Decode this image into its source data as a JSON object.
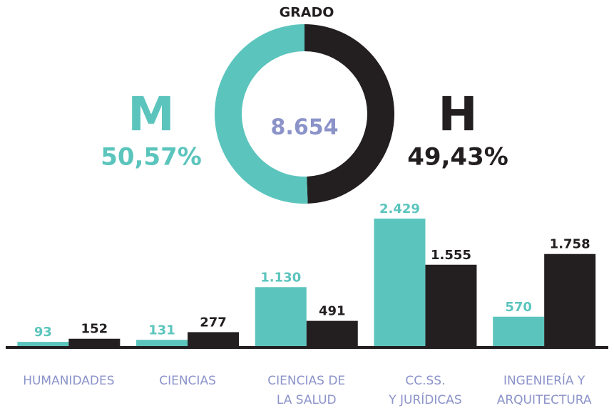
{
  "chart_data": [
    {
      "type": "pie",
      "title": "GRADO",
      "center_label": "8.654",
      "categories": [
        "M",
        "H"
      ],
      "values": [
        50.57,
        49.43
      ],
      "value_labels": [
        "50,57%",
        "49,43%"
      ],
      "colors": [
        "#5bc5bd",
        "#231f20"
      ]
    },
    {
      "type": "bar",
      "categories": [
        "HUMANIDADES",
        "CIENCIAS",
        "CIENCIAS DE\nLA SALUD",
        "CC.SS.\nY JURÍDICAS",
        "INGENIERÍA Y\nARQUITECTURA"
      ],
      "series": [
        {
          "color": "#5bc5bd",
          "values": [
            93,
            131,
            1130,
            2429,
            570
          ],
          "value_labels": [
            "93",
            "131",
            "1.130",
            "2.429",
            "570"
          ]
        },
        {
          "color": "#231f20",
          "values": [
            152,
            277,
            491,
            1555,
            1758
          ],
          "value_labels": [
            "152",
            "277",
            "491",
            "1.555",
            "1.758"
          ]
        }
      ]
    }
  ]
}
